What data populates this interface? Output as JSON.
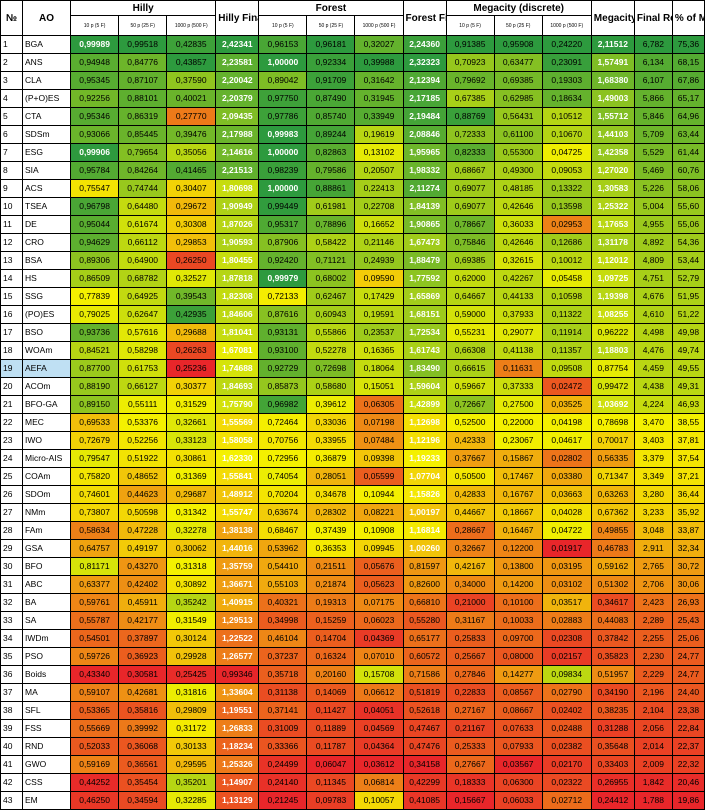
{
  "headers": {
    "no": "№",
    "ao": "AO",
    "hilly": "Hilly",
    "hilly_final": "Hilly Final",
    "forest": "Forest",
    "forest_final": "Forest Final",
    "megacity": "Megacity (discrete)",
    "megacity_final": "Megacity Final",
    "final_result": "Final Result",
    "pct_max": "% of MAX",
    "sub": [
      "10 p (5 F)",
      "50 p (25 F)",
      "1000 p (500 F)"
    ]
  },
  "rows": [
    [
      "1",
      "BGA",
      "0,99989",
      "0,99518",
      "0,42835",
      "2,42341",
      "0,96153",
      "0,96181",
      "0,32027",
      "2,24360",
      "0,91385",
      "0,95908",
      "0,24220",
      "2,11512",
      "6,782",
      "75,36"
    ],
    [
      "2",
      "ANS",
      "0,94948",
      "0,84776",
      "0,43857",
      "2,23581",
      "1,00000",
      "0,92334",
      "0,39988",
      "2,32323",
      "0,70923",
      "0,63477",
      "0,23091",
      "1,57491",
      "6,134",
      "68,15"
    ],
    [
      "3",
      "CLA",
      "0,95345",
      "0,87107",
      "0,37590",
      "2,20042",
      "0,89042",
      "0,91709",
      "0,31642",
      "2,12394",
      "0,79692",
      "0,69385",
      "0,19303",
      "1,68380",
      "6,107",
      "67,86"
    ],
    [
      "4",
      "(P+O)ES",
      "0,92256",
      "0,88101",
      "0,40021",
      "2,20379",
      "0,97750",
      "0,87490",
      "0,31945",
      "2,17185",
      "0,67385",
      "0,62985",
      "0,18634",
      "1,49003",
      "5,866",
      "65,17"
    ],
    [
      "5",
      "CTA",
      "0,95346",
      "0,86319",
      "0,27770",
      "2,09435",
      "0,97786",
      "0,85740",
      "0,33949",
      "2,19484",
      "0,88769",
      "0,56431",
      "0,10512",
      "1,55712",
      "5,846",
      "64,96"
    ],
    [
      "6",
      "SDSm",
      "0,93066",
      "0,85445",
      "0,39476",
      "2,17988",
      "0,99983",
      "0,89244",
      "0,19619",
      "2,08846",
      "0,72333",
      "0,61100",
      "0,10670",
      "1,44103",
      "5,709",
      "63,44"
    ],
    [
      "7",
      "ESG",
      "0,99906",
      "0,79654",
      "0,35056",
      "2,14616",
      "1,00000",
      "0,82863",
      "0,13102",
      "1,95965",
      "0,82333",
      "0,55300",
      "0,04725",
      "1,42358",
      "5,529",
      "61,44"
    ],
    [
      "8",
      "SIA",
      "0,95784",
      "0,84264",
      "0,41465",
      "2,21513",
      "0,98239",
      "0,79586",
      "0,20507",
      "1,98332",
      "0,68667",
      "0,49300",
      "0,09053",
      "1,27020",
      "5,469",
      "60,76"
    ],
    [
      "9",
      "ACS",
      "0,75547",
      "0,74744",
      "0,30407",
      "1,80698",
      "1,00000",
      "0,88861",
      "0,22413",
      "2,11274",
      "0,69077",
      "0,48185",
      "0,13322",
      "1,30583",
      "5,226",
      "58,06"
    ],
    [
      "10",
      "TSEA",
      "0,96798",
      "0,64480",
      "0,29672",
      "1,90949",
      "0,99449",
      "0,61981",
      "0,22708",
      "1,84139",
      "0,69077",
      "0,42646",
      "0,13598",
      "1,25322",
      "5,004",
      "55,60"
    ],
    [
      "11",
      "DE",
      "0,95044",
      "0,61674",
      "0,30308",
      "1,87026",
      "0,95317",
      "0,78896",
      "0,16652",
      "1,90865",
      "0,78667",
      "0,36033",
      "0,02953",
      "1,17653",
      "4,955",
      "55,06"
    ],
    [
      "12",
      "CRO",
      "0,94629",
      "0,66112",
      "0,29853",
      "1,90593",
      "0,87906",
      "0,58422",
      "0,21146",
      "1,67473",
      "0,75846",
      "0,42646",
      "0,12686",
      "1,31178",
      "4,892",
      "54,36"
    ],
    [
      "13",
      "BSA",
      "0,89306",
      "0,64900",
      "0,26250",
      "1,80455",
      "0,92420",
      "0,71121",
      "0,24939",
      "1,88479",
      "0,69385",
      "0,32615",
      "0,10012",
      "1,12012",
      "4,809",
      "53,44"
    ],
    [
      "14",
      "HS",
      "0,86509",
      "0,68782",
      "0,32527",
      "1,87818",
      "0,99979",
      "0,68002",
      "0,09590",
      "1,77592",
      "0,62000",
      "0,42267",
      "0,05458",
      "1,09725",
      "4,751",
      "52,79"
    ],
    [
      "15",
      "SSG",
      "0,77839",
      "0,64925",
      "0,39543",
      "1,82308",
      "0,72133",
      "0,62467",
      "0,17429",
      "1,65869",
      "0,64667",
      "0,44133",
      "0,10598",
      "1,19398",
      "4,676",
      "51,95"
    ],
    [
      "16",
      "(PO)ES",
      "0,79025",
      "0,62647",
      "0,42935",
      "1,84606",
      "0,87616",
      "0,60943",
      "0,19591",
      "1,68151",
      "0,59000",
      "0,37933",
      "0,11322",
      "1,08255",
      "4,610",
      "51,22"
    ],
    [
      "17",
      "BSO",
      "0,93736",
      "0,57616",
      "0,29688",
      "1,81041",
      "0,93131",
      "0,55866",
      "0,23537",
      "1,72534",
      "0,55231",
      "0,29077",
      "0,11914",
      "0,96222",
      "4,498",
      "49,98"
    ],
    [
      "18",
      "WOAm",
      "0,84521",
      "0,58298",
      "0,26263",
      "1,67081",
      "0,93100",
      "0,52278",
      "0,16365",
      "1,61743",
      "0,66308",
      "0,41138",
      "0,11357",
      "1,18803",
      "4,476",
      "49,74"
    ],
    [
      "19",
      "AEFA",
      "0,87700",
      "0,61753",
      "0,25236",
      "1,74688",
      "0,92729",
      "0,72698",
      "0,18064",
      "1,83490",
      "0,66615",
      "0,11631",
      "0,09508",
      "0,87754",
      "4,459",
      "49,55"
    ],
    [
      "20",
      "ACOm",
      "0,88190",
      "0,66127",
      "0,30377",
      "1,84693",
      "0,85873",
      "0,58680",
      "0,15051",
      "1,59604",
      "0,59667",
      "0,37333",
      "0,02472",
      "0,99472",
      "4,438",
      "49,31"
    ],
    [
      "21",
      "BFO-GA",
      "0,89150",
      "0,55111",
      "0,31529",
      "1,75790",
      "0,96982",
      "0,39612",
      "0,06305",
      "1,42899",
      "0,72667",
      "0,27500",
      "0,03525",
      "1,03692",
      "4,224",
      "46,93"
    ],
    [
      "22",
      "MEC",
      "0,69533",
      "0,53376",
      "0,32661",
      "1,55569",
      "0,72464",
      "0,33036",
      "0,07198",
      "1,12698",
      "0,52500",
      "0,22000",
      "0,04198",
      "0,78698",
      "3,470",
      "38,55"
    ],
    [
      "23",
      "IWO",
      "0,72679",
      "0,52256",
      "0,33123",
      "1,58058",
      "0,70756",
      "0,33955",
      "0,07484",
      "1,12196",
      "0,42333",
      "0,23067",
      "0,04617",
      "0,70017",
      "3,403",
      "37,81"
    ],
    [
      "24",
      "Micro-AIS",
      "0,79547",
      "0,51922",
      "0,30861",
      "1,62330",
      "0,72956",
      "0,36879",
      "0,09398",
      "1,19233",
      "0,37667",
      "0,15867",
      "0,02802",
      "0,56335",
      "3,379",
      "37,54"
    ],
    [
      "25",
      "COAm",
      "0,75820",
      "0,48652",
      "0,31369",
      "1,55841",
      "0,74054",
      "0,28051",
      "0,05599",
      "1,07704",
      "0,50500",
      "0,17467",
      "0,03380",
      "0,71347",
      "3,349",
      "37,21"
    ],
    [
      "26",
      "SDOm",
      "0,74601",
      "0,44623",
      "0,29687",
      "1,48912",
      "0,70204",
      "0,34678",
      "0,10944",
      "1,15826",
      "0,42833",
      "0,16767",
      "0,03663",
      "0,63263",
      "3,280",
      "36,44"
    ],
    [
      "27",
      "NMm",
      "0,73807",
      "0,50598",
      "0,31342",
      "1,55747",
      "0,63674",
      "0,28302",
      "0,08221",
      "1,00197",
      "0,44667",
      "0,18667",
      "0,04028",
      "0,67362",
      "3,233",
      "35,92"
    ],
    [
      "28",
      "FAm",
      "0,58634",
      "0,47228",
      "0,32278",
      "1,38138",
      "0,68467",
      "0,37439",
      "0,10908",
      "1,16814",
      "0,28667",
      "0,16467",
      "0,04722",
      "0,49855",
      "3,048",
      "33,87"
    ],
    [
      "29",
      "GSA",
      "0,64757",
      "0,49197",
      "0,30062",
      "1,44016",
      "0,53962",
      "0,36353",
      "0,09945",
      "1,00260",
      "0,32667",
      "0,12200",
      "0,01917",
      "0,46783",
      "2,911",
      "32,34"
    ],
    [
      "30",
      "BFO",
      "0,81171",
      "0,43270",
      "0,31318",
      "1,35759",
      "0,54410",
      "0,21511",
      "0,05676",
      "0,81597",
      "0,42167",
      "0,13800",
      "0,03195",
      "0,59162",
      "2,765",
      "30,72"
    ],
    [
      "31",
      "ABC",
      "0,63377",
      "0,42402",
      "0,30892",
      "1,36671",
      "0,55103",
      "0,21874",
      "0,05623",
      "0,82600",
      "0,34000",
      "0,14200",
      "0,03102",
      "0,51302",
      "2,706",
      "30,06"
    ],
    [
      "32",
      "BA",
      "0,59761",
      "0,45911",
      "0,35242",
      "1,40915",
      "0,40321",
      "0,19313",
      "0,07175",
      "0,66810",
      "0,21000",
      "0,10100",
      "0,03517",
      "0,34617",
      "2,423",
      "26,93"
    ],
    [
      "33",
      "SA",
      "0,55787",
      "0,42177",
      "0,31549",
      "1,29513",
      "0,34998",
      "0,15259",
      "0,06023",
      "0,55280",
      "0,31167",
      "0,10033",
      "0,02883",
      "0,44083",
      "2,289",
      "25,43"
    ],
    [
      "34",
      "IWDm",
      "0,54501",
      "0,37897",
      "0,30124",
      "1,22522",
      "0,46104",
      "0,14704",
      "0,04369",
      "0,65177",
      "0,25833",
      "0,09700",
      "0,02308",
      "0,37842",
      "2,255",
      "25,06"
    ],
    [
      "35",
      "PSO",
      "0,59726",
      "0,36923",
      "0,29928",
      "1,26577",
      "0,37237",
      "0,16324",
      "0,07010",
      "0,60572",
      "0,25667",
      "0,08000",
      "0,02157",
      "0,35823",
      "2,230",
      "24,77"
    ],
    [
      "36",
      "Boids",
      "0,43340",
      "0,30581",
      "0,25425",
      "0,99346",
      "0,35718",
      "0,20160",
      "0,15708",
      "0,71586",
      "0,27846",
      "0,14277",
      "0,09834",
      "0,51957",
      "2,229",
      "24,77"
    ],
    [
      "37",
      "MA",
      "0,59107",
      "0,42681",
      "0,31816",
      "1,33604",
      "0,31138",
      "0,14069",
      "0,06612",
      "0,51819",
      "0,22833",
      "0,08567",
      "0,02790",
      "0,34190",
      "2,196",
      "24,40"
    ],
    [
      "38",
      "SFL",
      "0,53365",
      "0,35816",
      "0,29809",
      "1,19551",
      "0,37141",
      "0,11427",
      "0,04051",
      "0,52618",
      "0,27167",
      "0,08667",
      "0,02402",
      "0,38235",
      "2,104",
      "23,38"
    ],
    [
      "39",
      "FSS",
      "0,55669",
      "0,39992",
      "0,31172",
      "1,26833",
      "0,31009",
      "0,11889",
      "0,04569",
      "0,47467",
      "0,21167",
      "0,07633",
      "0,02488",
      "0,31288",
      "2,056",
      "22,84"
    ],
    [
      "40",
      "RND",
      "0,52033",
      "0,36068",
      "0,30133",
      "1,18234",
      "0,33366",
      "0,11787",
      "0,04364",
      "0,47476",
      "0,25333",
      "0,07933",
      "0,02382",
      "0,35648",
      "2,014",
      "22,37"
    ],
    [
      "41",
      "GWO",
      "0,59169",
      "0,36561",
      "0,29595",
      "1,25326",
      "0,24499",
      "0,06047",
      "0,03612",
      "0,34158",
      "0,27667",
      "0,03567",
      "0,02170",
      "0,33403",
      "2,009",
      "22,32"
    ],
    [
      "42",
      "CSS",
      "0,44252",
      "0,35454",
      "0,35201",
      "1,14907",
      "0,24140",
      "0,11345",
      "0,06814",
      "0,42299",
      "0,18333",
      "0,06300",
      "0,02322",
      "0,26955",
      "1,842",
      "20,46"
    ],
    [
      "43",
      "EM",
      "0,46250",
      "0,34594",
      "0,32285",
      "1,13129",
      "0,21245",
      "0,09783",
      "0,10057",
      "0,41085",
      "0,15667",
      "0,06033",
      "0,02712",
      "0,24412",
      "1,788",
      "19,86"
    ]
  ],
  "colors": {
    "highlight_row_ao": "#bfe0f3",
    "scale_low": "#e8262a",
    "scale_mid": "#f4f000",
    "scale_high": "#2d9a3e"
  }
}
